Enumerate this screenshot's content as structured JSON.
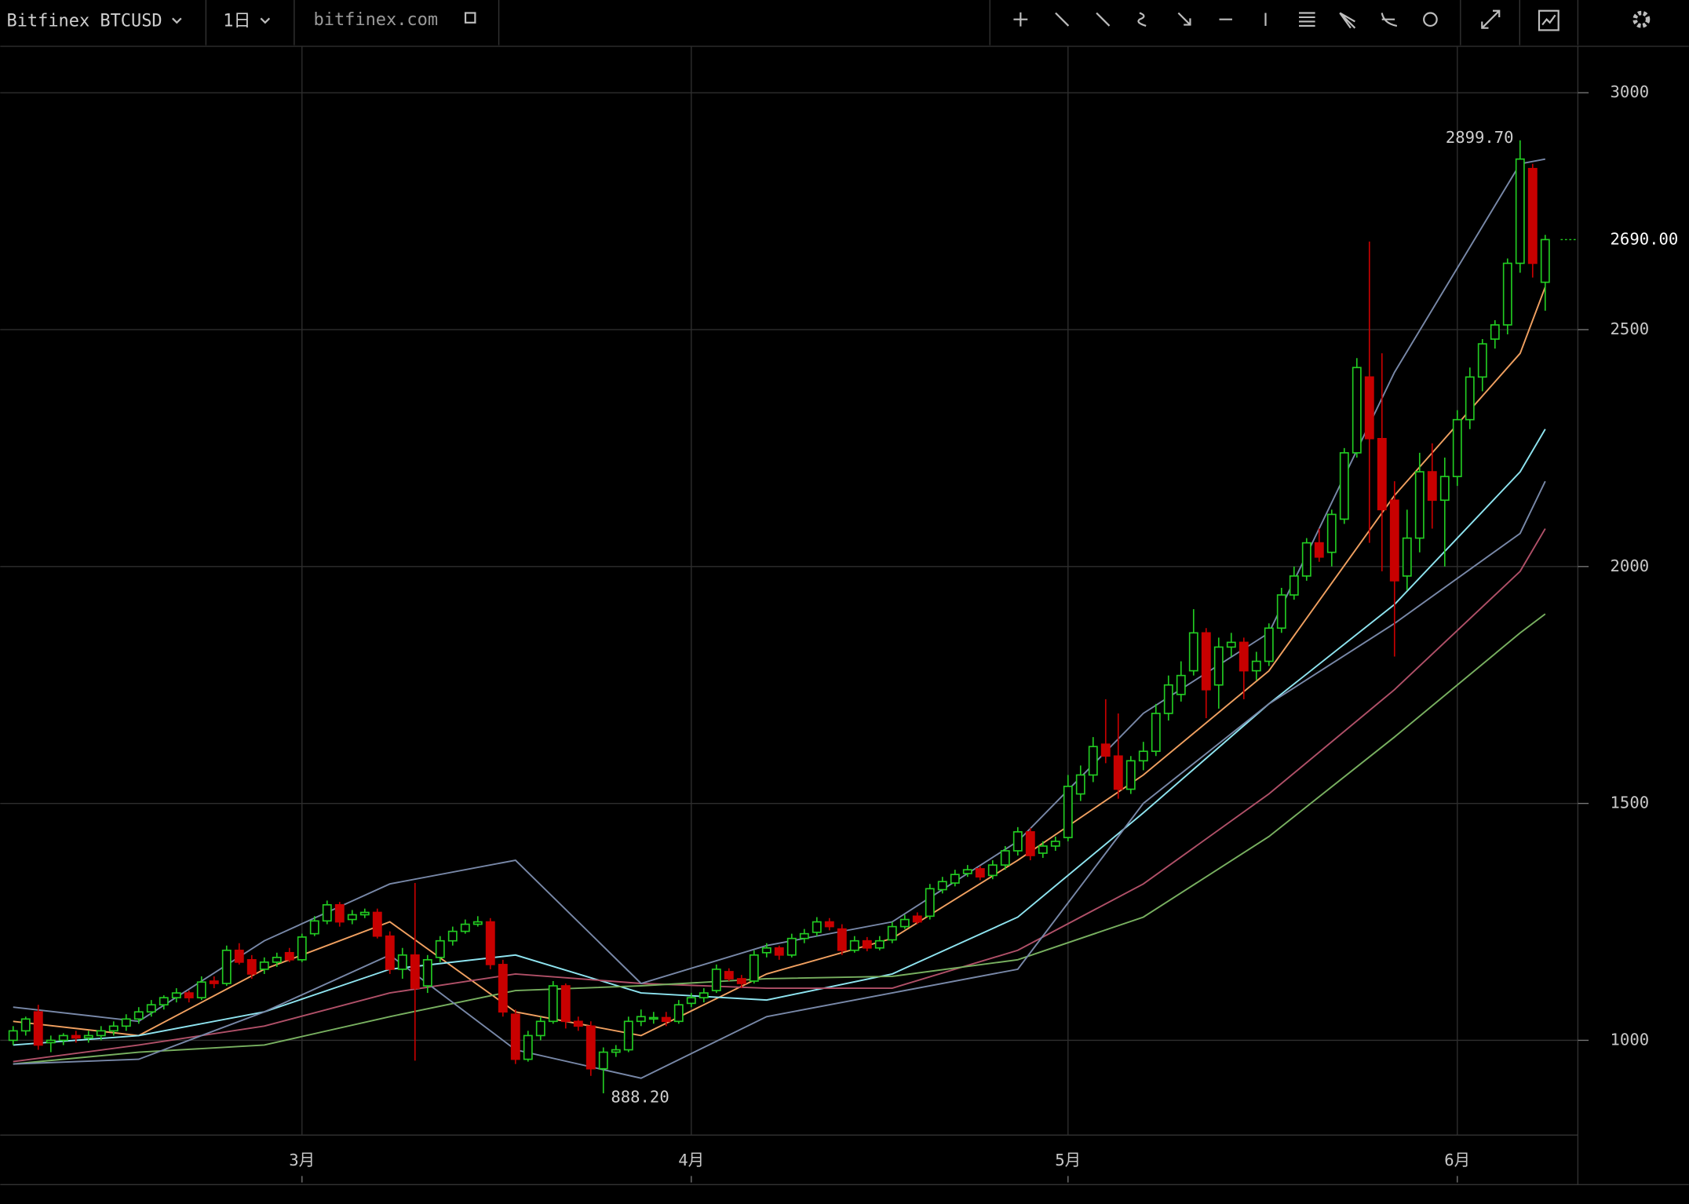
{
  "header": {
    "symbol": "Bitfinex BTCUSD",
    "interval": "1日",
    "source": "bitfinex.com"
  },
  "chart_data": {
    "type": "candlestick",
    "xlim": [
      -1.03,
      124.6
    ],
    "xticks": [
      {
        "value": 23,
        "label": "3月"
      },
      {
        "value": 54,
        "label": "4月"
      },
      {
        "value": 84,
        "label": "5月"
      },
      {
        "value": 115,
        "label": "6月"
      }
    ],
    "ylim": [
      800,
      3098
    ],
    "yticks": [
      1000,
      1500,
      2000,
      2500,
      3000
    ],
    "grid": true,
    "up_color": "#22cc22",
    "down_color": "#c80000",
    "ohlc": [
      [
        1000,
        1030,
        990,
        1020
      ],
      [
        1020,
        1050,
        1010,
        1045
      ],
      [
        1060,
        1075,
        980,
        990
      ],
      [
        995,
        1010,
        975,
        1000
      ],
      [
        1000,
        1015,
        990,
        1010
      ],
      [
        1010,
        1020,
        995,
        1005
      ],
      [
        1005,
        1020,
        995,
        1010
      ],
      [
        1010,
        1030,
        1000,
        1020
      ],
      [
        1020,
        1040,
        1010,
        1030
      ],
      [
        1030,
        1055,
        1020,
        1045
      ],
      [
        1045,
        1070,
        1035,
        1060
      ],
      [
        1060,
        1085,
        1050,
        1075
      ],
      [
        1075,
        1095,
        1065,
        1090
      ],
      [
        1090,
        1110,
        1080,
        1100
      ],
      [
        1100,
        1105,
        1080,
        1090
      ],
      [
        1090,
        1135,
        1085,
        1123
      ],
      [
        1125,
        1135,
        1110,
        1120
      ],
      [
        1120,
        1200,
        1115,
        1190
      ],
      [
        1190,
        1205,
        1160,
        1165
      ],
      [
        1170,
        1180,
        1130,
        1140
      ],
      [
        1150,
        1175,
        1140,
        1165
      ],
      [
        1165,
        1185,
        1155,
        1175
      ],
      [
        1185,
        1195,
        1165,
        1170
      ],
      [
        1170,
        1225,
        1165,
        1218
      ],
      [
        1225,
        1262,
        1220,
        1252
      ],
      [
        1252,
        1295,
        1245,
        1286
      ],
      [
        1286,
        1292,
        1240,
        1250
      ],
      [
        1255,
        1275,
        1245,
        1265
      ],
      [
        1265,
        1278,
        1258,
        1270
      ],
      [
        1270,
        1278,
        1215,
        1220
      ],
      [
        1220,
        1230,
        1140,
        1150
      ],
      [
        1150,
        1195,
        1130,
        1180
      ],
      [
        1180,
        1332,
        957,
        1110
      ],
      [
        1115,
        1180,
        1100,
        1170
      ],
      [
        1175,
        1220,
        1165,
        1210
      ],
      [
        1210,
        1240,
        1200,
        1230
      ],
      [
        1230,
        1255,
        1225,
        1245
      ],
      [
        1245,
        1262,
        1240,
        1250
      ],
      [
        1250,
        1258,
        1150,
        1160
      ],
      [
        1160,
        1170,
        1050,
        1060
      ],
      [
        1055,
        1065,
        950,
        960
      ],
      [
        960,
        1020,
        955,
        1010
      ],
      [
        1010,
        1050,
        1000,
        1040
      ],
      [
        1040,
        1125,
        1035,
        1115
      ],
      [
        1115,
        1120,
        1025,
        1040
      ],
      [
        1040,
        1050,
        1020,
        1030
      ],
      [
        1030,
        1040,
        925,
        940
      ],
      [
        940,
        985,
        888.2,
        975
      ],
      [
        975,
        990,
        965,
        980
      ],
      [
        980,
        1050,
        975,
        1040
      ],
      [
        1040,
        1065,
        1030,
        1050
      ],
      [
        1045,
        1060,
        1035,
        1048
      ],
      [
        1048,
        1060,
        1030,
        1040
      ],
      [
        1040,
        1085,
        1035,
        1075
      ],
      [
        1078,
        1100,
        1070,
        1090
      ],
      [
        1090,
        1110,
        1080,
        1100
      ],
      [
        1105,
        1160,
        1100,
        1150
      ],
      [
        1145,
        1152,
        1125,
        1130
      ],
      [
        1130,
        1138,
        1110,
        1120
      ],
      [
        1125,
        1190,
        1120,
        1180
      ],
      [
        1185,
        1205,
        1175,
        1195
      ],
      [
        1195,
        1200,
        1170,
        1180
      ],
      [
        1180,
        1225,
        1175,
        1215
      ],
      [
        1215,
        1235,
        1205,
        1225
      ],
      [
        1228,
        1260,
        1220,
        1250
      ],
      [
        1250,
        1258,
        1232,
        1240
      ],
      [
        1235,
        1245,
        1180,
        1190
      ],
      [
        1190,
        1220,
        1185,
        1210
      ],
      [
        1210,
        1218,
        1188,
        1195
      ],
      [
        1195,
        1220,
        1190,
        1210
      ],
      [
        1212,
        1250,
        1205,
        1240
      ],
      [
        1240,
        1265,
        1235,
        1255
      ],
      [
        1262,
        1270,
        1245,
        1250
      ],
      [
        1262,
        1330,
        1255,
        1320
      ],
      [
        1318,
        1345,
        1310,
        1335
      ],
      [
        1332,
        1360,
        1325,
        1350
      ],
      [
        1352,
        1370,
        1345,
        1360
      ],
      [
        1362,
        1368,
        1338,
        1345
      ],
      [
        1348,
        1380,
        1340,
        1370
      ],
      [
        1370,
        1410,
        1360,
        1400
      ],
      [
        1400,
        1450,
        1390,
        1440
      ],
      [
        1440,
        1448,
        1380,
        1390
      ],
      [
        1395,
        1420,
        1385,
        1410
      ],
      [
        1410,
        1430,
        1400,
        1420
      ],
      [
        1428,
        1560,
        1420,
        1536
      ],
      [
        1520,
        1580,
        1505,
        1560
      ],
      [
        1560,
        1640,
        1545,
        1620
      ],
      [
        1625,
        1720,
        1585,
        1600
      ],
      [
        1600,
        1690,
        1510,
        1530
      ],
      [
        1530,
        1600,
        1520,
        1590
      ],
      [
        1590,
        1630,
        1570,
        1610
      ],
      [
        1610,
        1710,
        1600,
        1690
      ],
      [
        1690,
        1770,
        1675,
        1750
      ],
      [
        1730,
        1800,
        1715,
        1770
      ],
      [
        1780,
        1910,
        1770,
        1860
      ],
      [
        1860,
        1870,
        1680,
        1740
      ],
      [
        1750,
        1850,
        1700,
        1830
      ],
      [
        1830,
        1860,
        1810,
        1840
      ],
      [
        1840,
        1850,
        1720,
        1780
      ],
      [
        1780,
        1820,
        1760,
        1800
      ],
      [
        1800,
        1880,
        1790,
        1870
      ],
      [
        1870,
        1955,
        1860,
        1940
      ],
      [
        1940,
        2000,
        1930,
        1980
      ],
      [
        1980,
        2060,
        1970,
        2050
      ],
      [
        2050,
        2080,
        2010,
        2020
      ],
      [
        2030,
        2120,
        2000,
        2110
      ],
      [
        2100,
        2250,
        2090,
        2240
      ],
      [
        2240,
        2440,
        2230,
        2420
      ],
      [
        2400,
        2686,
        2050,
        2270
      ],
      [
        2270,
        2450,
        1990,
        2120
      ],
      [
        2140,
        2180,
        1810,
        1970
      ],
      [
        1980,
        2120,
        1950,
        2060
      ],
      [
        2060,
        2240,
        2030,
        2200
      ],
      [
        2200,
        2260,
        2080,
        2140
      ],
      [
        2140,
        2230,
        2000,
        2190
      ],
      [
        2190,
        2330,
        2170,
        2310
      ],
      [
        2310,
        2420,
        2290,
        2400
      ],
      [
        2400,
        2480,
        2370,
        2470
      ],
      [
        2480,
        2520,
        2460,
        2510
      ],
      [
        2510,
        2650,
        2490,
        2640
      ],
      [
        2640,
        2899.7,
        2620,
        2860
      ],
      [
        2840,
        2850,
        2610,
        2640
      ],
      [
        2600,
        2700,
        2540,
        2690
      ]
    ],
    "lines": [
      {
        "color": "#f0a060",
        "x": [
          0,
          10,
          20,
          30,
          40,
          50,
          60,
          70,
          80,
          90,
          100,
          110,
          120,
          122
        ],
        "values": [
          1040,
          1010,
          1150,
          1250,
          1060,
          1010,
          1140,
          1215,
          1380,
          1560,
          1780,
          2150,
          2450,
          2590
        ]
      },
      {
        "color": "#8ee4f0",
        "x": [
          0,
          10,
          20,
          30,
          40,
          50,
          60,
          70,
          80,
          90,
          100,
          110,
          120,
          122
        ],
        "values": [
          990,
          1010,
          1060,
          1150,
          1180,
          1100,
          1085,
          1140,
          1260,
          1480,
          1710,
          1920,
          2200,
          2290
        ]
      },
      {
        "color": "#b05068",
        "x": [
          0,
          10,
          20,
          30,
          40,
          50,
          60,
          70,
          80,
          90,
          100,
          110,
          120,
          122
        ],
        "values": [
          955,
          990,
          1030,
          1100,
          1140,
          1120,
          1110,
          1110,
          1190,
          1330,
          1520,
          1740,
          1990,
          2080
        ]
      },
      {
        "color": "#78b060",
        "x": [
          0,
          10,
          20,
          30,
          40,
          50,
          60,
          70,
          80,
          90,
          100,
          110,
          120,
          122
        ],
        "values": [
          950,
          975,
          990,
          1050,
          1105,
          1115,
          1130,
          1135,
          1170,
          1260,
          1430,
          1640,
          1860,
          1900
        ]
      },
      {
        "color": "#7888a8",
        "x": [
          0,
          10,
          20,
          30,
          40,
          50,
          60,
          70,
          80,
          90,
          100,
          110,
          120,
          122
        ],
        "values": [
          1070,
          1040,
          1210,
          1330,
          1380,
          1120,
          1200,
          1250,
          1420,
          1690,
          1860,
          2410,
          2850,
          2860
        ]
      },
      {
        "color": "#7888a8",
        "x": [
          0,
          10,
          20,
          30,
          40,
          50,
          60,
          70,
          80,
          90,
          100,
          110,
          120,
          122
        ],
        "values": [
          950,
          960,
          1060,
          1180,
          980,
          920,
          1050,
          1100,
          1150,
          1500,
          1710,
          1880,
          2070,
          2180
        ]
      }
    ],
    "annotations": [
      {
        "index": 120,
        "value": 2899.7,
        "label": "2899.70"
      },
      {
        "index": 47,
        "value": 888.2,
        "label": "888.20"
      }
    ],
    "last_price": {
      "value": 2690,
      "label": "2690.00"
    }
  }
}
